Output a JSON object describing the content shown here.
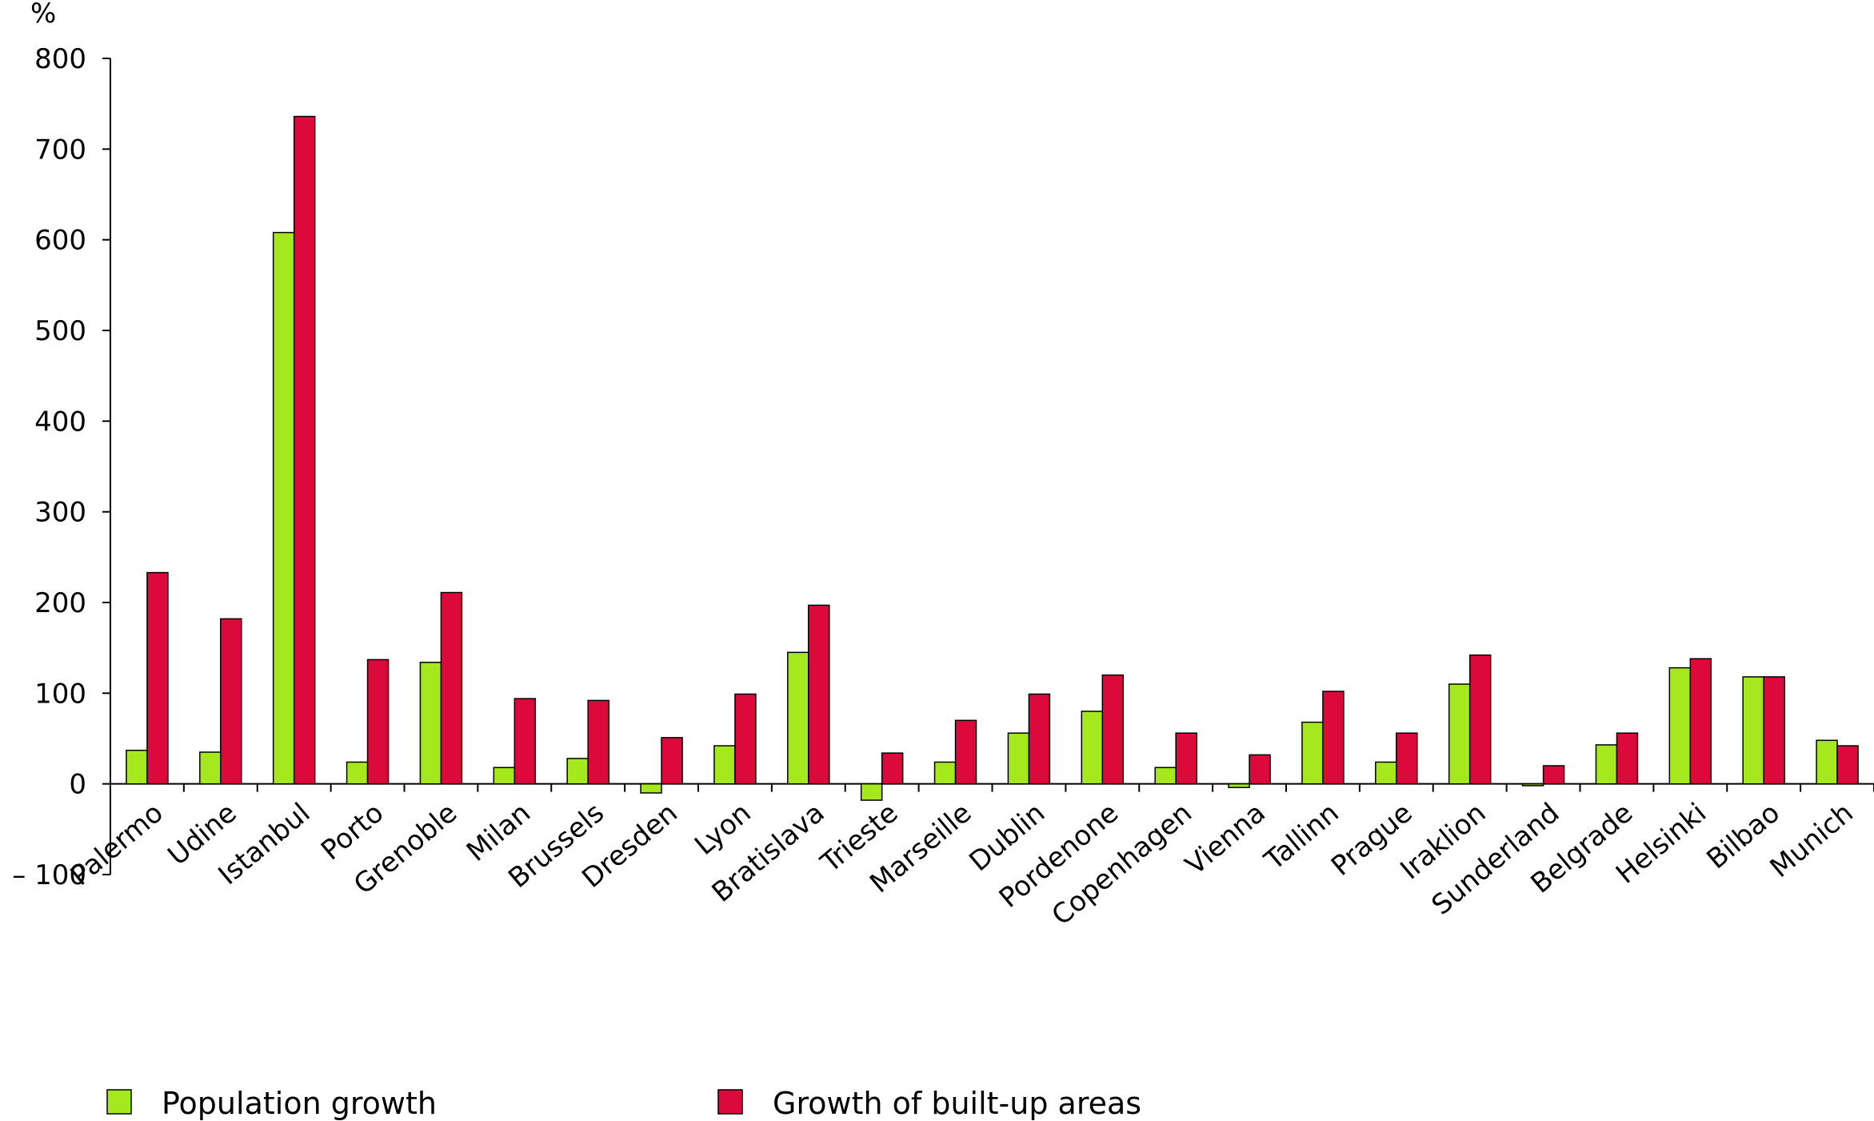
{
  "chart_data": {
    "type": "bar",
    "ylabel": "%",
    "ylim": [
      -100,
      800
    ],
    "yticks": [
      800,
      700,
      600,
      500,
      400,
      300,
      200,
      100,
      0,
      -100
    ],
    "ytick_labels": [
      "800",
      "700",
      "600",
      "500",
      "400",
      "300",
      "200",
      "100",
      "0",
      "– 100"
    ],
    "grid": false,
    "legend_position": "bottom",
    "categories": [
      "Palermo",
      "Udine",
      "Istanbul",
      "Porto",
      "Grenoble",
      "Milan",
      "Brussels",
      "Dresden",
      "Lyon",
      "Bratislava",
      "Trieste",
      "Marseille",
      "Dublin",
      "Pordenone",
      "Copenhagen",
      "Vienna",
      "Tallinn",
      "Prague",
      "Iraklion",
      "Sunderland",
      "Belgrade",
      "Helsinki",
      "Bilbao",
      "Munich"
    ],
    "series": [
      {
        "name": "Population growth",
        "color": "#a6e81e",
        "values": [
          37,
          35,
          608,
          24,
          134,
          18,
          28,
          -10,
          42,
          145,
          -18,
          24,
          56,
          80,
          18,
          -4,
          68,
          24,
          110,
          -2,
          43,
          128,
          118,
          48
        ]
      },
      {
        "name": "Growth of built-up areas",
        "color": "#dc0a3a",
        "values": [
          233,
          182,
          736,
          137,
          211,
          94,
          92,
          51,
          99,
          197,
          34,
          70,
          99,
          120,
          56,
          32,
          102,
          56,
          142,
          20,
          56,
          138,
          118,
          42
        ]
      }
    ]
  }
}
